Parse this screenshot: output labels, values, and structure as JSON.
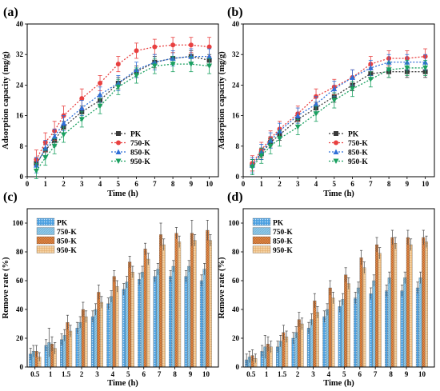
{
  "figure": {
    "panels": [
      {
        "label": "(a)",
        "name": "panel-a"
      },
      {
        "label": "(b)",
        "name": "panel-b"
      },
      {
        "label": "(c)",
        "name": "panel-c"
      },
      {
        "label": "(d)",
        "name": "panel-d"
      }
    ],
    "colors": {
      "PK": "#3a3a3a",
      "750-K": "#e84040",
      "850-K": "#2f6fd8",
      "950-K": "#1aa060"
    },
    "bar_colors": {
      "PK": "#4a9fe0",
      "750-K": "#8ec8e8",
      "850-K": "#e8914a",
      "950-K": "#f0c58a"
    }
  },
  "chart_data": [
    {
      "type": "line",
      "panel": "(a)",
      "xlabel": "Time (h)",
      "ylabel": "Adsorption capacity (mg/g)",
      "xlim": [
        0,
        10.5
      ],
      "ylim": [
        0,
        40
      ],
      "xticks": [
        0,
        1,
        2,
        3,
        4,
        5,
        6,
        7,
        8,
        9,
        10
      ],
      "yticks": [
        0,
        8,
        16,
        24,
        32,
        40
      ],
      "legend_position": "center-right",
      "x": [
        0.5,
        1,
        1.5,
        2,
        3,
        4,
        5,
        6,
        7,
        8,
        9,
        10
      ],
      "series": [
        {
          "name": "PK",
          "values": [
            3.5,
            7,
            9.5,
            13,
            17,
            20,
            24.5,
            27.5,
            30,
            31,
            31.5,
            30.5
          ],
          "err": [
            1.5,
            1.5,
            1.5,
            1.5,
            1.5,
            1.5,
            1.5,
            1.5,
            1.5,
            1.5,
            1.5,
            1.5
          ]
        },
        {
          "name": "750-K",
          "values": [
            4.5,
            9,
            12,
            16,
            20.5,
            24.5,
            29.5,
            33,
            34,
            34.5,
            34.5,
            34
          ],
          "err": [
            2.5,
            2.5,
            2.5,
            2.5,
            2.5,
            2,
            2,
            2,
            2,
            2,
            2,
            2.5
          ]
        },
        {
          "name": "850-K",
          "values": [
            3,
            7.5,
            10.5,
            14,
            18,
            21.5,
            24.5,
            28,
            30,
            31,
            31.5,
            31.5
          ],
          "err": [
            2,
            2,
            2,
            2,
            2,
            2,
            2,
            2,
            2,
            2,
            2,
            2
          ]
        },
        {
          "name": "950-K",
          "values": [
            1.5,
            5,
            8,
            11,
            15,
            18.5,
            23.5,
            26.5,
            29,
            29.5,
            29.5,
            29
          ],
          "err": [
            2,
            2,
            2,
            2,
            2,
            2,
            2,
            2,
            2,
            2,
            2,
            2
          ]
        }
      ]
    },
    {
      "type": "line",
      "panel": "(b)",
      "xlabel": "Time (h)",
      "ylabel": "Adsorption capacity (mg/g)",
      "xlim": [
        0,
        10.5
      ],
      "ylim": [
        0,
        40
      ],
      "xticks": [
        0,
        1,
        2,
        3,
        4,
        5,
        6,
        7,
        8,
        9,
        10
      ],
      "yticks": [
        0,
        8,
        16,
        24,
        32,
        40
      ],
      "legend_position": "center-right",
      "x": [
        0.5,
        1,
        1.5,
        2,
        3,
        4,
        5,
        6,
        7,
        8,
        9,
        10
      ],
      "series": [
        {
          "name": "PK",
          "values": [
            3,
            6,
            9,
            11,
            15,
            18,
            21,
            24,
            27,
            27.5,
            27.5,
            27.5
          ],
          "err": [
            1.5,
            1.5,
            1.5,
            1.5,
            1.5,
            1.5,
            1.5,
            1.5,
            1.5,
            1.5,
            1.5,
            1.5
          ]
        },
        {
          "name": "750-K",
          "values": [
            3.5,
            7,
            10,
            12.5,
            16.5,
            21,
            23.5,
            26,
            29.5,
            31,
            31,
            31.5
          ],
          "err": [
            2,
            2,
            2,
            2,
            2,
            2,
            2,
            2,
            2,
            2,
            2,
            2
          ]
        },
        {
          "name": "850-K",
          "values": [
            3,
            6.5,
            9.5,
            12,
            16,
            19,
            23,
            26,
            28.5,
            30,
            30,
            30
          ],
          "err": [
            2,
            2,
            2,
            2,
            2,
            2,
            2,
            2,
            2,
            2,
            2,
            2
          ]
        },
        {
          "name": "950-K",
          "values": [
            2.5,
            5.5,
            8,
            10,
            13,
            16.5,
            20,
            23,
            25.5,
            28,
            28.5,
            28.5
          ],
          "err": [
            2,
            2,
            2,
            2,
            2,
            2,
            2,
            2,
            2,
            2,
            2,
            2
          ]
        }
      ]
    },
    {
      "type": "bar",
      "panel": "(c)",
      "xlabel": "Time (h)",
      "ylabel": "Remove rate (%)",
      "ylim": [
        0,
        110
      ],
      "yticks": [
        0,
        20,
        40,
        60,
        80,
        100
      ],
      "legend_position": "top-left",
      "categories": [
        "0.5",
        "1",
        "1.5",
        "2",
        "3",
        "4",
        "5",
        "6",
        "7",
        "8",
        "9",
        "10"
      ],
      "series": [
        {
          "name": "PK",
          "values": [
            9,
            15,
            19,
            27,
            35,
            44,
            54,
            61,
            63,
            63,
            63,
            60
          ],
          "err": [
            4,
            4,
            4,
            4,
            4,
            4,
            4,
            4,
            4,
            4,
            4,
            4
          ]
        },
        {
          "name": "750-K",
          "values": [
            11,
            17,
            22,
            31,
            40,
            49,
            59,
            66,
            68,
            70,
            70,
            68
          ],
          "err": [
            4,
            10,
            4,
            4,
            4,
            4,
            4,
            4,
            4,
            4,
            4,
            4
          ]
        },
        {
          "name": "850-K",
          "values": [
            11,
            16,
            31,
            40,
            52,
            63,
            73,
            82,
            92,
            93,
            93,
            95
          ],
          "err": [
            4,
            5,
            5,
            5,
            5,
            4,
            4,
            4,
            8,
            4,
            9,
            7
          ]
        },
        {
          "name": "950-K",
          "values": [
            7,
            13,
            25,
            35,
            45,
            56,
            66,
            75,
            85,
            87,
            88,
            88
          ],
          "err": [
            3,
            4,
            4,
            4,
            4,
            4,
            4,
            4,
            4,
            4,
            4,
            4
          ]
        }
      ]
    },
    {
      "type": "bar",
      "panel": "(d)",
      "xlabel": "Time (h)",
      "ylabel": "Remove rate (%)",
      "ylim": [
        0,
        110
      ],
      "yticks": [
        0,
        20,
        40,
        60,
        80,
        100
      ],
      "legend_position": "top-left",
      "categories": [
        "0.5",
        "1",
        "1.5",
        "2",
        "3",
        "4",
        "5",
        "6",
        "7",
        "8",
        "9",
        "10"
      ],
      "series": [
        {
          "name": "PK",
          "values": [
            5,
            11,
            14,
            20,
            27,
            35,
            42,
            48,
            51,
            53,
            53,
            55
          ],
          "err": [
            4,
            4,
            4,
            4,
            4,
            4,
            4,
            4,
            4,
            4,
            4,
            4
          ]
        },
        {
          "name": "750-K",
          "values": [
            7,
            14,
            18,
            24,
            33,
            40,
            47,
            55,
            60,
            62,
            62,
            62
          ],
          "err": [
            4,
            8,
            4,
            4,
            4,
            4,
            4,
            4,
            4,
            4,
            4,
            4
          ]
        },
        {
          "name": "850-K",
          "values": [
            8,
            16,
            24,
            33,
            46,
            55,
            64,
            76,
            85,
            90,
            90,
            90
          ],
          "err": [
            4,
            5,
            5,
            5,
            5,
            5,
            5,
            5,
            5,
            5,
            5,
            5
          ]
        },
        {
          "name": "950-K",
          "values": [
            6,
            14,
            21,
            30,
            38,
            48,
            58,
            69,
            79,
            86,
            85,
            87
          ],
          "err": [
            3,
            4,
            4,
            4,
            4,
            4,
            4,
            4,
            4,
            4,
            4,
            4
          ]
        }
      ]
    }
  ]
}
